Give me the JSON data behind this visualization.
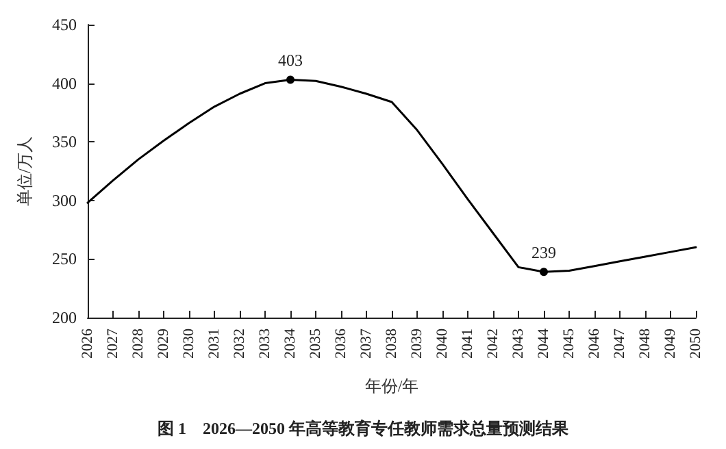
{
  "chart_data": {
    "type": "line",
    "title": "图 1　2026—2050 年高等教育专任教师需求总量预测结果",
    "xlabel": "年份/年",
    "ylabel": "单位/万人",
    "categories": [
      "2026",
      "2027",
      "2028",
      "2029",
      "2030",
      "2031",
      "2032",
      "2033",
      "2034",
      "2035",
      "2036",
      "2037",
      "2038",
      "2039",
      "2040",
      "2041",
      "2042",
      "2043",
      "2044",
      "2045",
      "2046",
      "2047",
      "2048",
      "2049",
      "2050"
    ],
    "series": [
      {
        "color": "#000000",
        "values": [
          298,
          317,
          335,
          351,
          366,
          380,
          391,
          400,
          403,
          402,
          397,
          391,
          384,
          360,
          331,
          301,
          272,
          243,
          239,
          240,
          244,
          248,
          252,
          256,
          260
        ],
        "value_labels": [
          null,
          null,
          null,
          null,
          null,
          null,
          null,
          null,
          "403",
          null,
          null,
          null,
          null,
          null,
          null,
          null,
          null,
          null,
          "239",
          null,
          null,
          null,
          null,
          null,
          null
        ]
      }
    ],
    "ylim": [
      200,
      450
    ],
    "yticks": [
      200,
      250,
      300,
      350,
      400,
      450
    ],
    "grid": false,
    "line_style": "solid"
  }
}
